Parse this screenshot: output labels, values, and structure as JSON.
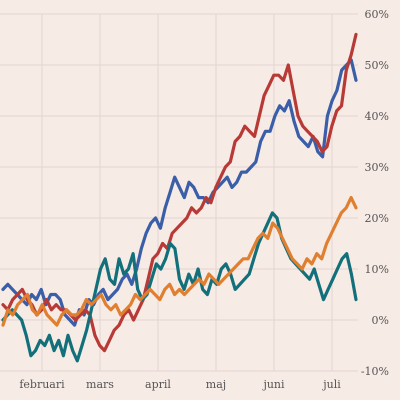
{
  "chart_data": {
    "type": "line",
    "title": "",
    "xlabel": "",
    "ylabel": "",
    "x_ticks": [
      "februari",
      "mars",
      "april",
      "maj",
      "juni",
      "juli"
    ],
    "y_ticks": [
      "-10%",
      "0%",
      "10%",
      "20%",
      "30%",
      "40%",
      "50%",
      "60%"
    ],
    "ylim": [
      -10,
      60
    ],
    "y_unit": "%",
    "grid": true,
    "legend": "none",
    "series": [
      {
        "color": "#3a5fa8",
        "values": [
          6,
          7,
          6,
          5,
          4,
          3,
          5,
          4,
          6,
          3,
          5,
          5,
          4,
          1,
          0,
          -1,
          2,
          1,
          4,
          3,
          5,
          6,
          4,
          5,
          6,
          8,
          9,
          7,
          10,
          14,
          17,
          19,
          20,
          18,
          22,
          25,
          28,
          26,
          24,
          27,
          26,
          24,
          24,
          23,
          25,
          26,
          27,
          28,
          26,
          27,
          29,
          29,
          30,
          31,
          35,
          37,
          37,
          40,
          42,
          41,
          43,
          39,
          36,
          35,
          34,
          36,
          33,
          32,
          40,
          43,
          45,
          49,
          50,
          51,
          47
        ]
      },
      {
        "color": "#b83a37",
        "values": [
          3,
          2,
          4,
          5,
          6,
          4,
          3,
          1,
          2,
          4,
          2,
          3,
          2,
          2,
          1,
          0,
          1,
          2,
          1,
          -3,
          -5,
          -6,
          -4,
          -2,
          -1,
          1,
          2,
          0,
          2,
          4,
          8,
          12,
          13,
          15,
          14,
          17,
          18,
          19,
          20,
          22,
          21,
          22,
          24,
          23,
          26,
          28,
          30,
          31,
          35,
          36,
          38,
          37,
          36,
          40,
          44,
          46,
          48,
          48,
          47,
          50,
          45,
          40,
          38,
          37,
          36,
          35,
          33,
          34,
          38,
          41,
          42,
          49,
          52,
          56
        ]
      },
      {
        "color": "#13707a",
        "values": [
          0,
          1,
          2,
          1,
          0,
          -3,
          -7,
          -6,
          -4,
          -5,
          -3,
          -6,
          -4,
          -7,
          -3,
          -6,
          -8,
          -5,
          -2,
          2,
          6,
          10,
          12,
          8,
          7,
          12,
          9,
          10,
          13,
          6,
          4,
          5,
          8,
          11,
          10,
          12,
          15,
          14,
          8,
          6,
          9,
          7,
          10,
          6,
          5,
          8,
          7,
          10,
          11,
          9,
          6,
          7,
          8,
          9,
          12,
          15,
          17,
          19,
          21,
          20,
          16,
          14,
          12,
          11,
          10,
          9,
          8,
          10,
          7,
          4,
          6,
          8,
          10,
          12,
          13,
          9,
          4
        ]
      },
      {
        "color": "#e07f2f",
        "values": [
          -1,
          2,
          1,
          3,
          4,
          5,
          2,
          1,
          3,
          1,
          0,
          -1,
          1,
          2,
          1,
          1,
          2,
          4,
          3,
          4,
          5,
          3,
          2,
          3,
          1,
          2,
          3,
          5,
          4,
          5,
          6,
          5,
          4,
          6,
          7,
          5,
          6,
          5,
          6,
          7,
          8,
          7,
          9,
          8,
          7,
          8,
          9,
          10,
          11,
          12,
          12,
          14,
          16,
          17,
          16,
          19,
          18,
          16,
          14,
          12,
          11,
          10,
          12,
          11,
          13,
          12,
          15,
          17,
          19,
          21,
          22,
          24,
          22
        ]
      }
    ]
  }
}
